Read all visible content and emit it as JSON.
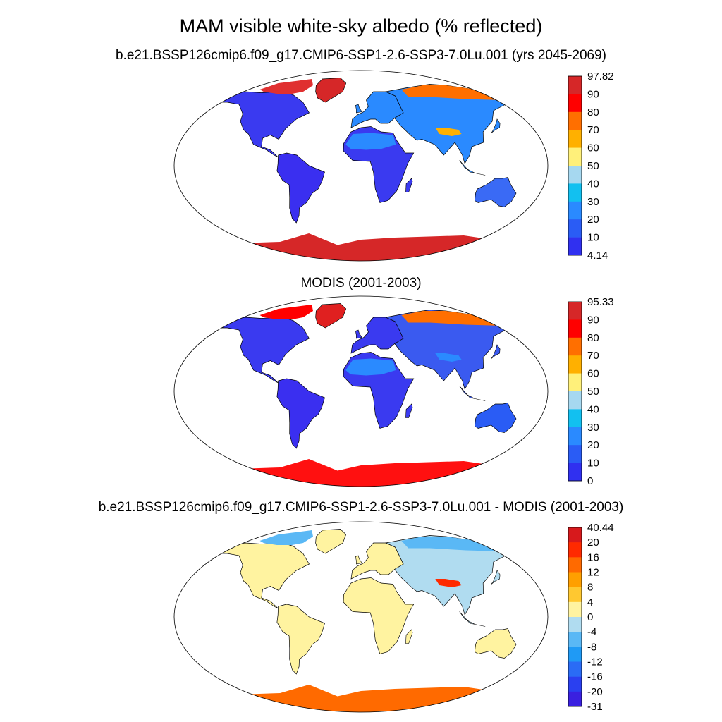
{
  "title": "MAM visible white-sky albedo (% reflected)",
  "panels": [
    {
      "id": "model",
      "title": "b.e21.BSSP126cmip6.f09_g17.CMIP6-SSP1-2.6-SSP3-7.0Lu.001 (yrs 2045-2069)",
      "colorbar": {
        "labels": [
          "97.82",
          "90",
          "80",
          "70",
          "60",
          "50",
          "40",
          "30",
          "20",
          "10",
          "4.14"
        ],
        "colors": [
          "#d62728",
          "#ff0000",
          "#ff6f00",
          "#ffb000",
          "#fff07a",
          "#a6d8f0",
          "#12c0f0",
          "#2a8aff",
          "#2a5cf5",
          "#3030f0"
        ]
      },
      "fields": {
        "north_america": "#3a3af0",
        "arctic_canada": "#e03030",
        "greenland": "#d62728",
        "south_america": "#3a2ff0",
        "africa": "#3a3af0",
        "sahara": "#2a8aff",
        "europe": "#2a8aff",
        "asia": "#2a8aff",
        "siberia_snow": "#ff6f00",
        "tibet": "#ffb000",
        "australia": "#3a6af5",
        "antarctica": "#d62728"
      }
    },
    {
      "id": "obs",
      "title": "MODIS (2001-2003)",
      "colorbar": {
        "labels": [
          "95.33",
          "90",
          "80",
          "70",
          "60",
          "50",
          "40",
          "30",
          "20",
          "10",
          "0"
        ],
        "colors": [
          "#d62728",
          "#ff0000",
          "#ff6f00",
          "#ffb000",
          "#fff07a",
          "#a6d8f0",
          "#12c0f0",
          "#2a8aff",
          "#2a5cf5",
          "#3030f0"
        ]
      },
      "fields": {
        "north_america": "#3a3af0",
        "arctic_canada": "#ff0000",
        "greenland": "#e02020",
        "south_america": "#3a2ff0",
        "africa": "#3a3af0",
        "sahara": "#2a8aff",
        "europe": "#3a3af0",
        "asia": "#3a5af0",
        "siberia_snow": "#ff6f00",
        "tibet": "#2a8aff",
        "australia": "#2a5cf5",
        "antarctica": "#ff1010"
      }
    },
    {
      "id": "diff",
      "title": "b.e21.BSSP126cmip6.f09_g17.CMIP6-SSP1-2.6-SSP3-7.0Lu.001 - MODIS (2001-2003)",
      "colorbar": {
        "labels": [
          "40.44",
          "20",
          "16",
          "12",
          "8",
          "4",
          "0",
          "-4",
          "-8",
          "-12",
          "-16",
          "-20",
          "-31"
        ],
        "colors": [
          "#d7191c",
          "#ff2a00",
          "#ff6a00",
          "#ff9f00",
          "#ffc830",
          "#fff3a0",
          "#b0dcf0",
          "#5ab8f5",
          "#1f9af5",
          "#2a6cf5",
          "#2a40f0",
          "#3a20e0"
        ]
      },
      "fields": {
        "north_america": "#fff3a0",
        "arctic_canada": "#5ab8f5",
        "greenland": "#fff3a0",
        "south_america": "#fff3a0",
        "africa": "#fff3a0",
        "sahara": "#fff3a0",
        "europe": "#fff3a0",
        "asia": "#b0dcf0",
        "siberia_snow": "#5ab8f5",
        "tibet": "#ff2a00",
        "australia": "#fff3a0",
        "antarctica": "#ff6a00"
      }
    }
  ]
}
